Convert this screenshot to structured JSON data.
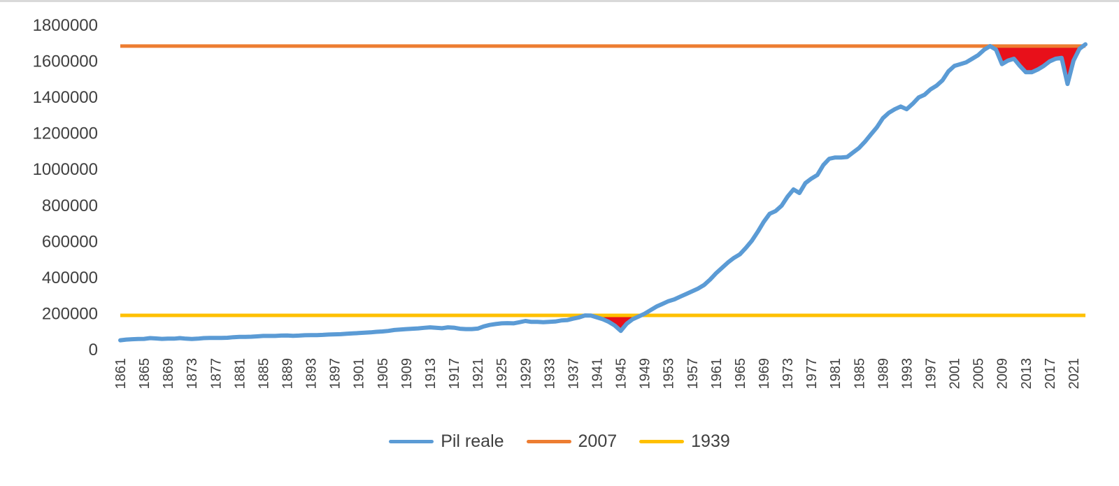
{
  "chart_data": {
    "type": "line",
    "title": "",
    "xlabel": "",
    "ylabel": "",
    "ylim": [
      0,
      1800000
    ],
    "y_ticks": [
      "0",
      "200000",
      "400000",
      "600000",
      "800000",
      "1000000",
      "1200000",
      "1400000",
      "1600000",
      "1800000"
    ],
    "x_tick_labels": [
      "1861",
      "1865",
      "1869",
      "1873",
      "1877",
      "1881",
      "1885",
      "1889",
      "1893",
      "1897",
      "1901",
      "1905",
      "1909",
      "1913",
      "1917",
      "1921",
      "1925",
      "1929",
      "1933",
      "1937",
      "1941",
      "1945",
      "1949",
      "1953",
      "1957",
      "1961",
      "1965",
      "1969",
      "1973",
      "1977",
      "1981",
      "1985",
      "1989",
      "1993",
      "1997",
      "2001",
      "2005",
      "2009",
      "2013",
      "2017",
      "2021"
    ],
    "x_range": [
      1861,
      2023
    ],
    "grid": false,
    "legend_position": "bottom",
    "series": [
      {
        "name": "Pil reale",
        "color": "#5b9bd5",
        "x": [
          1861,
          1862,
          1863,
          1864,
          1865,
          1866,
          1867,
          1868,
          1869,
          1870,
          1871,
          1872,
          1873,
          1874,
          1875,
          1876,
          1877,
          1878,
          1879,
          1880,
          1881,
          1882,
          1883,
          1884,
          1885,
          1886,
          1887,
          1888,
          1889,
          1890,
          1891,
          1892,
          1893,
          1894,
          1895,
          1896,
          1897,
          1898,
          1899,
          1900,
          1901,
          1902,
          1903,
          1904,
          1905,
          1906,
          1907,
          1908,
          1909,
          1910,
          1911,
          1912,
          1913,
          1914,
          1915,
          1916,
          1917,
          1918,
          1919,
          1920,
          1921,
          1922,
          1923,
          1924,
          1925,
          1926,
          1927,
          1928,
          1929,
          1930,
          1931,
          1932,
          1933,
          1934,
          1935,
          1936,
          1937,
          1938,
          1939,
          1940,
          1941,
          1942,
          1943,
          1944,
          1945,
          1946,
          1947,
          1948,
          1949,
          1950,
          1951,
          1952,
          1953,
          1954,
          1955,
          1956,
          1957,
          1958,
          1959,
          1960,
          1961,
          1962,
          1963,
          1964,
          1965,
          1966,
          1967,
          1968,
          1969,
          1970,
          1971,
          1972,
          1973,
          1974,
          1975,
          1976,
          1977,
          1978,
          1979,
          1980,
          1981,
          1982,
          1983,
          1984,
          1985,
          1986,
          1987,
          1988,
          1989,
          1990,
          1991,
          1992,
          1993,
          1994,
          1995,
          1996,
          1997,
          1998,
          1999,
          2000,
          2001,
          2002,
          2003,
          2004,
          2005,
          2006,
          2007,
          2008,
          2009,
          2010,
          2011,
          2012,
          2013,
          2014,
          2015,
          2016,
          2017,
          2018,
          2019,
          2020,
          2021,
          2022,
          2023
        ],
        "values": [
          48000,
          52000,
          54000,
          55000,
          56000,
          60000,
          58000,
          56000,
          57000,
          57000,
          60000,
          57000,
          55000,
          57000,
          60000,
          61000,
          61000,
          61000,
          62000,
          65000,
          67000,
          67000,
          68000,
          70000,
          72000,
          72000,
          72000,
          74000,
          75000,
          73000,
          74000,
          76000,
          77000,
          77000,
          78000,
          80000,
          81000,
          82000,
          84000,
          86000,
          88000,
          90000,
          92000,
          95000,
          97000,
          100000,
          105000,
          108000,
          110000,
          112000,
          114000,
          117000,
          120000,
          117000,
          115000,
          120000,
          118000,
          112000,
          110000,
          110000,
          113000,
          125000,
          133000,
          138000,
          142000,
          143000,
          142000,
          148000,
          155000,
          150000,
          150000,
          148000,
          150000,
          152000,
          158000,
          160000,
          168000,
          175000,
          186000,
          185000,
          175000,
          165000,
          150000,
          130000,
          100000,
          140000,
          165000,
          180000,
          195000,
          215000,
          235000,
          250000,
          265000,
          275000,
          290000,
          305000,
          320000,
          335000,
          355000,
          385000,
          420000,
          450000,
          480000,
          505000,
          525000,
          560000,
          600000,
          650000,
          705000,
          750000,
          765000,
          795000,
          845000,
          885000,
          865000,
          920000,
          945000,
          965000,
          1020000,
          1055000,
          1062000,
          1062000,
          1065000,
          1090000,
          1115000,
          1150000,
          1190000,
          1230000,
          1280000,
          1310000,
          1330000,
          1345000,
          1330000,
          1360000,
          1395000,
          1410000,
          1440000,
          1460000,
          1490000,
          1540000,
          1570000,
          1580000,
          1590000,
          1610000,
          1630000,
          1660000,
          1680000,
          1660000,
          1580000,
          1600000,
          1610000,
          1570000,
          1535000,
          1535000,
          1550000,
          1570000,
          1595000,
          1610000,
          1615000,
          1470000,
          1600000,
          1665000,
          1690000
        ]
      },
      {
        "name": "2007",
        "color": "#ed7d31",
        "value": 1680000
      },
      {
        "name": "1939",
        "color": "#ffc000",
        "value": 186000
      }
    ],
    "shaded_gap_color": "#e8101a"
  }
}
